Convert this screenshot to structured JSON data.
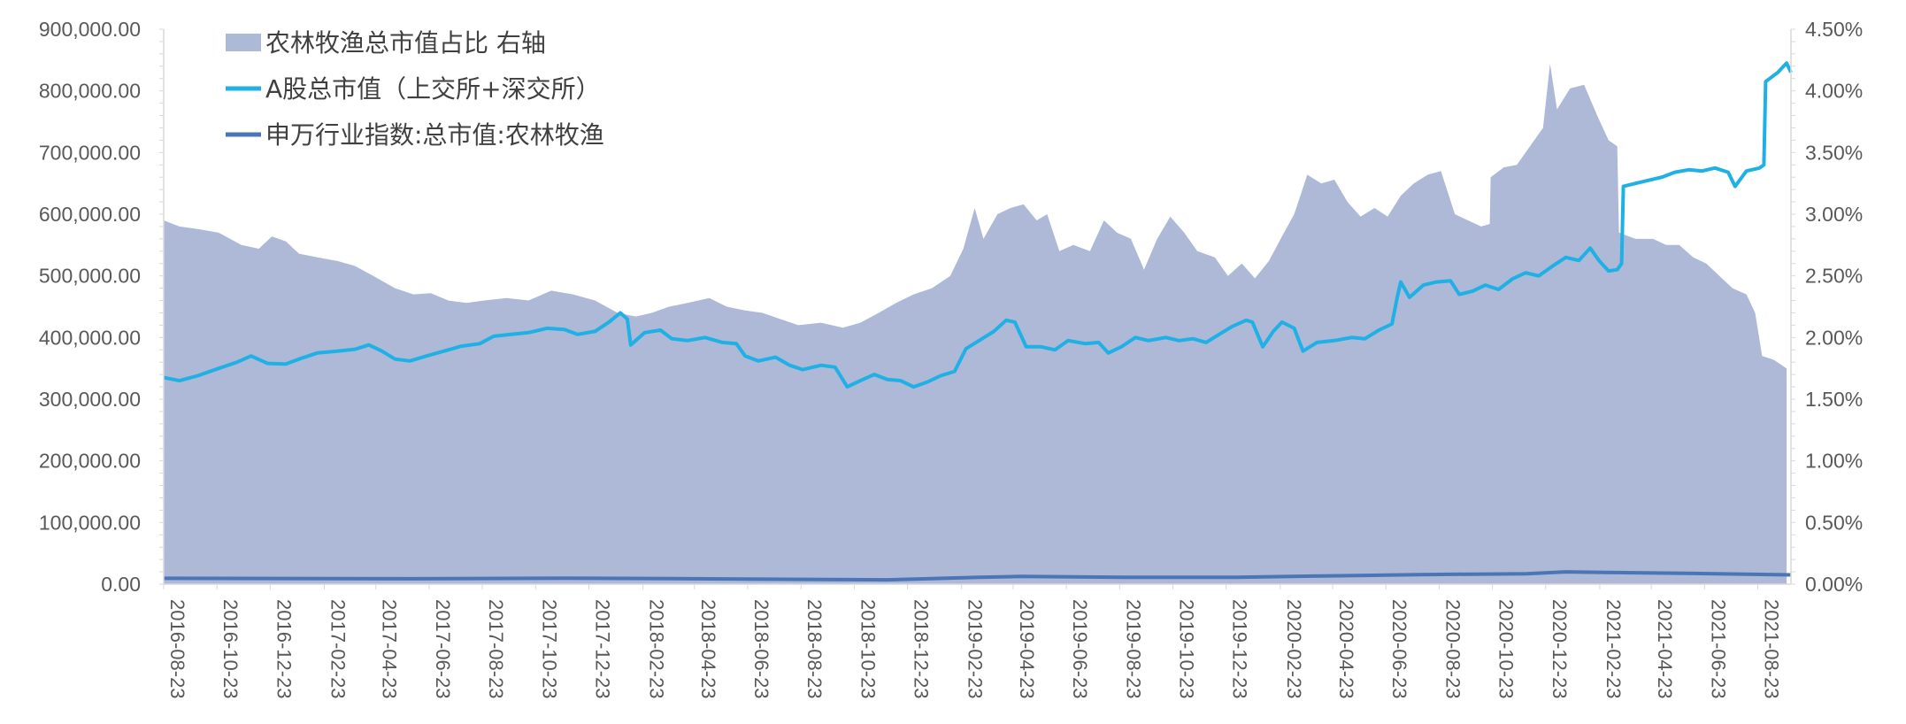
{
  "chart_data": {
    "type": "area",
    "title": "",
    "xlabel": "",
    "ylabel": "",
    "y_left_lim": [
      0,
      900000
    ],
    "y_right_lim": [
      0,
      4.5
    ],
    "y_left_ticks": [
      "900,000.00",
      "800,000.00",
      "700,000.00",
      "600,000.00",
      "500,000.00",
      "400,000.00",
      "300,000.00",
      "200,000.00",
      "100,000.00",
      "0.00"
    ],
    "y_right_ticks": [
      "4.50%",
      "4.00%",
      "3.50%",
      "3.00%",
      "2.50%",
      "2.00%",
      "1.50%",
      "1.00%",
      "0.50%",
      "0.00%"
    ],
    "x_tick_labels": [
      "2016-08-23",
      "2016-10-23",
      "2016-12-23",
      "2017-02-23",
      "2017-04-23",
      "2017-06-23",
      "2017-08-23",
      "2017-10-23",
      "2017-12-23",
      "2018-02-23",
      "2018-04-23",
      "2018-06-23",
      "2018-08-23",
      "2018-10-23",
      "2018-12-23",
      "2019-02-23",
      "2019-04-23",
      "2019-06-23",
      "2019-08-23",
      "2019-10-23",
      "2019-12-23",
      "2020-02-23",
      "2020-04-23",
      "2020-06-23",
      "2020-08-23",
      "2020-10-23",
      "2020-12-23",
      "2021-02-23",
      "2021-04-23",
      "2021-06-23",
      "2021-08-23"
    ],
    "x_start": "2016-08-23",
    "x_end": "2021-09-30",
    "legend_position": "top-left",
    "grid": false,
    "colors": {
      "area": "#adb9d6",
      "a_share": "#1fb0e6",
      "agri": "#4a76b8",
      "axis": "#d9d9d9",
      "text": "#595959"
    },
    "series": [
      {
        "name": "农林牧渔总市值占比 右轴",
        "axis": "right",
        "kind": "area",
        "points": [
          [
            "2016-08-23",
            2.95
          ],
          [
            "2016-09-10",
            2.9
          ],
          [
            "2016-10-01",
            2.88
          ],
          [
            "2016-10-25",
            2.85
          ],
          [
            "2016-11-20",
            2.75
          ],
          [
            "2016-12-10",
            2.72
          ],
          [
            "2016-12-25",
            2.82
          ],
          [
            "2017-01-10",
            2.78
          ],
          [
            "2017-01-25",
            2.68
          ],
          [
            "2017-02-15",
            2.65
          ],
          [
            "2017-03-10",
            2.62
          ],
          [
            "2017-03-30",
            2.58
          ],
          [
            "2017-04-20",
            2.5
          ],
          [
            "2017-05-15",
            2.4
          ],
          [
            "2017-06-05",
            2.35
          ],
          [
            "2017-06-25",
            2.36
          ],
          [
            "2017-07-15",
            2.3
          ],
          [
            "2017-08-05",
            2.28
          ],
          [
            "2017-08-25",
            2.3
          ],
          [
            "2017-09-20",
            2.32
          ],
          [
            "2017-10-15",
            2.3
          ],
          [
            "2017-11-10",
            2.38
          ],
          [
            "2017-12-05",
            2.35
          ],
          [
            "2017-12-30",
            2.3
          ],
          [
            "2018-01-25",
            2.2
          ],
          [
            "2018-02-15",
            2.17
          ],
          [
            "2018-03-05",
            2.2
          ],
          [
            "2018-03-25",
            2.25
          ],
          [
            "2018-04-15",
            2.28
          ],
          [
            "2018-05-10",
            2.32
          ],
          [
            "2018-05-30",
            2.25
          ],
          [
            "2018-06-20",
            2.22
          ],
          [
            "2018-07-10",
            2.2
          ],
          [
            "2018-07-30",
            2.15
          ],
          [
            "2018-08-20",
            2.1
          ],
          [
            "2018-09-15",
            2.12
          ],
          [
            "2018-10-10",
            2.08
          ],
          [
            "2018-10-30",
            2.12
          ],
          [
            "2018-11-20",
            2.2
          ],
          [
            "2018-12-10",
            2.28
          ],
          [
            "2018-12-30",
            2.35
          ],
          [
            "2019-01-20",
            2.4
          ],
          [
            "2019-02-10",
            2.5
          ],
          [
            "2019-02-25",
            2.72
          ],
          [
            "2019-03-10",
            3.05
          ],
          [
            "2019-03-20",
            2.8
          ],
          [
            "2019-04-05",
            3.0
          ],
          [
            "2019-04-20",
            3.05
          ],
          [
            "2019-05-05",
            3.08
          ],
          [
            "2019-05-20",
            2.95
          ],
          [
            "2019-06-01",
            3.0
          ],
          [
            "2019-06-15",
            2.7
          ],
          [
            "2019-07-01",
            2.75
          ],
          [
            "2019-07-20",
            2.7
          ],
          [
            "2019-08-05",
            2.95
          ],
          [
            "2019-08-20",
            2.85
          ],
          [
            "2019-09-05",
            2.8
          ],
          [
            "2019-09-20",
            2.55
          ],
          [
            "2019-10-05",
            2.8
          ],
          [
            "2019-10-20",
            2.98
          ],
          [
            "2019-11-05",
            2.85
          ],
          [
            "2019-11-20",
            2.7
          ],
          [
            "2019-12-10",
            2.65
          ],
          [
            "2019-12-25",
            2.5
          ],
          [
            "2020-01-10",
            2.6
          ],
          [
            "2020-01-25",
            2.48
          ],
          [
            "2020-02-10",
            2.62
          ],
          [
            "2020-02-25",
            2.82
          ],
          [
            "2020-03-10",
            3.0
          ],
          [
            "2020-03-25",
            3.32
          ],
          [
            "2020-04-10",
            3.25
          ],
          [
            "2020-04-25",
            3.28
          ],
          [
            "2020-05-10",
            3.1
          ],
          [
            "2020-05-25",
            2.98
          ],
          [
            "2020-06-10",
            3.05
          ],
          [
            "2020-06-25",
            2.98
          ],
          [
            "2020-07-10",
            3.15
          ],
          [
            "2020-07-25",
            3.25
          ],
          [
            "2020-08-10",
            3.32
          ],
          [
            "2020-08-25",
            3.35
          ],
          [
            "2020-09-10",
            3.0
          ],
          [
            "2020-09-25",
            2.95
          ],
          [
            "2020-10-10",
            2.9
          ],
          [
            "2020-10-20",
            2.92
          ],
          [
            "2020-10-21",
            3.3
          ],
          [
            "2020-11-05",
            3.38
          ],
          [
            "2020-11-20",
            3.4
          ],
          [
            "2020-12-05",
            3.55
          ],
          [
            "2020-12-20",
            3.7
          ],
          [
            "2020-12-28",
            4.22
          ],
          [
            "2021-01-05",
            3.85
          ],
          [
            "2021-01-20",
            4.02
          ],
          [
            "2021-02-05",
            4.05
          ],
          [
            "2021-02-20",
            3.8
          ],
          [
            "2021-03-05",
            3.6
          ],
          [
            "2021-03-15",
            3.55
          ],
          [
            "2021-03-17",
            2.85
          ],
          [
            "2021-04-05",
            2.8
          ],
          [
            "2021-04-25",
            2.8
          ],
          [
            "2021-05-10",
            2.75
          ],
          [
            "2021-05-25",
            2.75
          ],
          [
            "2021-06-10",
            2.65
          ],
          [
            "2021-06-25",
            2.6
          ],
          [
            "2021-07-10",
            2.5
          ],
          [
            "2021-07-25",
            2.4
          ],
          [
            "2021-08-10",
            2.35
          ],
          [
            "2021-08-20",
            2.2
          ],
          [
            "2021-08-28",
            1.85
          ],
          [
            "2021-09-10",
            1.82
          ],
          [
            "2021-09-25",
            1.75
          ]
        ]
      },
      {
        "name": "A股总市值（上交所+深交所）",
        "axis": "left",
        "kind": "line",
        "points": [
          [
            "2016-08-23",
            335000
          ],
          [
            "2016-09-10",
            330000
          ],
          [
            "2016-10-01",
            338000
          ],
          [
            "2016-10-25",
            350000
          ],
          [
            "2016-11-15",
            360000
          ],
          [
            "2016-12-01",
            370000
          ],
          [
            "2016-12-20",
            358000
          ],
          [
            "2017-01-10",
            357000
          ],
          [
            "2017-01-25",
            365000
          ],
          [
            "2017-02-15",
            375000
          ],
          [
            "2017-03-10",
            378000
          ],
          [
            "2017-03-30",
            381000
          ],
          [
            "2017-04-15",
            388000
          ],
          [
            "2017-04-30",
            378000
          ],
          [
            "2017-05-15",
            365000
          ],
          [
            "2017-06-01",
            362000
          ],
          [
            "2017-06-20",
            370000
          ],
          [
            "2017-07-10",
            378000
          ],
          [
            "2017-07-30",
            386000
          ],
          [
            "2017-08-20",
            390000
          ],
          [
            "2017-09-05",
            402000
          ],
          [
            "2017-09-25",
            405000
          ],
          [
            "2017-10-15",
            408000
          ],
          [
            "2017-11-05",
            415000
          ],
          [
            "2017-11-25",
            413000
          ],
          [
            "2017-12-10",
            405000
          ],
          [
            "2017-12-30",
            410000
          ],
          [
            "2018-01-15",
            425000
          ],
          [
            "2018-01-28",
            440000
          ],
          [
            "2018-02-05",
            430000
          ],
          [
            "2018-02-09",
            388000
          ],
          [
            "2018-02-25",
            408000
          ],
          [
            "2018-03-15",
            412000
          ],
          [
            "2018-03-28",
            398000
          ],
          [
            "2018-04-15",
            395000
          ],
          [
            "2018-05-05",
            400000
          ],
          [
            "2018-05-25",
            392000
          ],
          [
            "2018-06-10",
            390000
          ],
          [
            "2018-06-20",
            370000
          ],
          [
            "2018-07-05",
            362000
          ],
          [
            "2018-07-25",
            368000
          ],
          [
            "2018-08-10",
            355000
          ],
          [
            "2018-08-25",
            348000
          ],
          [
            "2018-09-15",
            355000
          ],
          [
            "2018-10-01",
            352000
          ],
          [
            "2018-10-15",
            320000
          ],
          [
            "2018-10-30",
            330000
          ],
          [
            "2018-11-15",
            340000
          ],
          [
            "2018-11-30",
            332000
          ],
          [
            "2018-12-15",
            330000
          ],
          [
            "2018-12-30",
            320000
          ],
          [
            "2019-01-15",
            328000
          ],
          [
            "2019-01-30",
            338000
          ],
          [
            "2019-02-15",
            345000
          ],
          [
            "2019-02-28",
            382000
          ],
          [
            "2019-03-15",
            395000
          ],
          [
            "2019-04-01",
            410000
          ],
          [
            "2019-04-15",
            428000
          ],
          [
            "2019-04-25",
            425000
          ],
          [
            "2019-05-08",
            385000
          ],
          [
            "2019-05-25",
            385000
          ],
          [
            "2019-06-10",
            380000
          ],
          [
            "2019-06-25",
            395000
          ],
          [
            "2019-07-15",
            390000
          ],
          [
            "2019-07-30",
            392000
          ],
          [
            "2019-08-10",
            375000
          ],
          [
            "2019-08-25",
            385000
          ],
          [
            "2019-09-10",
            400000
          ],
          [
            "2019-09-25",
            395000
          ],
          [
            "2019-10-15",
            400000
          ],
          [
            "2019-10-30",
            395000
          ],
          [
            "2019-11-15",
            398000
          ],
          [
            "2019-11-30",
            392000
          ],
          [
            "2019-12-15",
            405000
          ],
          [
            "2019-12-30",
            418000
          ],
          [
            "2020-01-15",
            428000
          ],
          [
            "2020-01-22",
            425000
          ],
          [
            "2020-02-03",
            385000
          ],
          [
            "2020-02-15",
            410000
          ],
          [
            "2020-02-25",
            425000
          ],
          [
            "2020-03-10",
            415000
          ],
          [
            "2020-03-20",
            378000
          ],
          [
            "2020-04-05",
            392000
          ],
          [
            "2020-04-25",
            395000
          ],
          [
            "2020-05-15",
            400000
          ],
          [
            "2020-05-30",
            398000
          ],
          [
            "2020-06-15",
            412000
          ],
          [
            "2020-06-30",
            422000
          ],
          [
            "2020-07-06",
            465000
          ],
          [
            "2020-07-10",
            490000
          ],
          [
            "2020-07-20",
            465000
          ],
          [
            "2020-08-05",
            485000
          ],
          [
            "2020-08-20",
            490000
          ],
          [
            "2020-09-05",
            492000
          ],
          [
            "2020-09-15",
            470000
          ],
          [
            "2020-09-30",
            475000
          ],
          [
            "2020-10-15",
            485000
          ],
          [
            "2020-10-30",
            478000
          ],
          [
            "2020-11-15",
            495000
          ],
          [
            "2020-11-30",
            505000
          ],
          [
            "2020-12-15",
            500000
          ],
          [
            "2020-12-30",
            515000
          ],
          [
            "2021-01-15",
            530000
          ],
          [
            "2021-01-30",
            525000
          ],
          [
            "2021-02-12",
            545000
          ],
          [
            "2021-02-22",
            525000
          ],
          [
            "2021-03-05",
            508000
          ],
          [
            "2021-03-15",
            510000
          ],
          [
            "2021-03-20",
            520000
          ],
          [
            "2021-03-22",
            645000
          ],
          [
            "2021-04-05",
            650000
          ],
          [
            "2021-04-20",
            655000
          ],
          [
            "2021-05-05",
            660000
          ],
          [
            "2021-05-20",
            668000
          ],
          [
            "2021-06-05",
            672000
          ],
          [
            "2021-06-20",
            670000
          ],
          [
            "2021-07-05",
            675000
          ],
          [
            "2021-07-20",
            668000
          ],
          [
            "2021-07-28",
            645000
          ],
          [
            "2021-08-10",
            670000
          ],
          [
            "2021-08-25",
            675000
          ],
          [
            "2021-08-30",
            680000
          ],
          [
            "2021-09-01",
            815000
          ],
          [
            "2021-09-15",
            830000
          ],
          [
            "2021-09-25",
            845000
          ],
          [
            "2021-09-30",
            830000
          ]
        ]
      },
      {
        "name": "申万行业指数:总市值:农林牧渔",
        "axis": "left",
        "kind": "line",
        "points": [
          [
            "2016-08-23",
            9500
          ],
          [
            "2017-06-01",
            8800
          ],
          [
            "2017-12-01",
            9800
          ],
          [
            "2018-06-01",
            8500
          ],
          [
            "2018-12-01",
            7000
          ],
          [
            "2019-03-15",
            11000
          ],
          [
            "2019-05-01",
            12500
          ],
          [
            "2019-09-01",
            11000
          ],
          [
            "2020-01-01",
            11000
          ],
          [
            "2020-04-01",
            13000
          ],
          [
            "2020-08-01",
            15500
          ],
          [
            "2020-12-01",
            17000
          ],
          [
            "2021-01-15",
            20000
          ],
          [
            "2021-03-01",
            19000
          ],
          [
            "2021-06-01",
            17500
          ],
          [
            "2021-09-30",
            15000
          ]
        ]
      }
    ]
  }
}
